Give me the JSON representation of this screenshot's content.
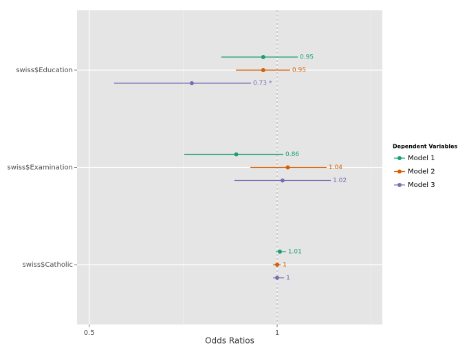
{
  "chart_data": {
    "type": "forest",
    "xlabel": "Odds Ratios",
    "categories": [
      "swiss$Education",
      "swiss$Examination",
      "swiss$Catholic"
    ],
    "legend_title": "Dependent Variables",
    "legend_position": "right",
    "xscale": "log",
    "xlim": [
      0.478,
      1.474
    ],
    "xticks": [
      0.5,
      1
    ],
    "reference_line": 1,
    "grid": true,
    "series": [
      {
        "name": "Model 1",
        "color": "#1b9e77",
        "values": [
          0.95,
          0.86,
          1.01
        ],
        "lower": [
          0.814,
          0.71,
          0.995
        ],
        "upper": [
          1.079,
          1.023,
          1.033
        ],
        "value_labels": [
          "0.95",
          "0.86",
          "1.01"
        ]
      },
      {
        "name": "Model 2",
        "color": "#d95f02",
        "values": [
          0.95,
          1.04,
          1
        ],
        "lower": [
          0.859,
          0.906,
          0.985
        ],
        "upper": [
          1.049,
          1.2,
          1.013
        ],
        "value_labels": [
          "0.95",
          "1.04",
          "1"
        ]
      },
      {
        "name": "Model 3",
        "color": "#7570b3",
        "values": [
          0.73,
          1.02,
          1
        ],
        "lower": [
          0.548,
          0.854,
          0.985
        ],
        "upper": [
          0.908,
          1.219,
          1.026
        ],
        "value_labels": [
          "0.73 *",
          "1.02",
          "1"
        ]
      }
    ]
  }
}
